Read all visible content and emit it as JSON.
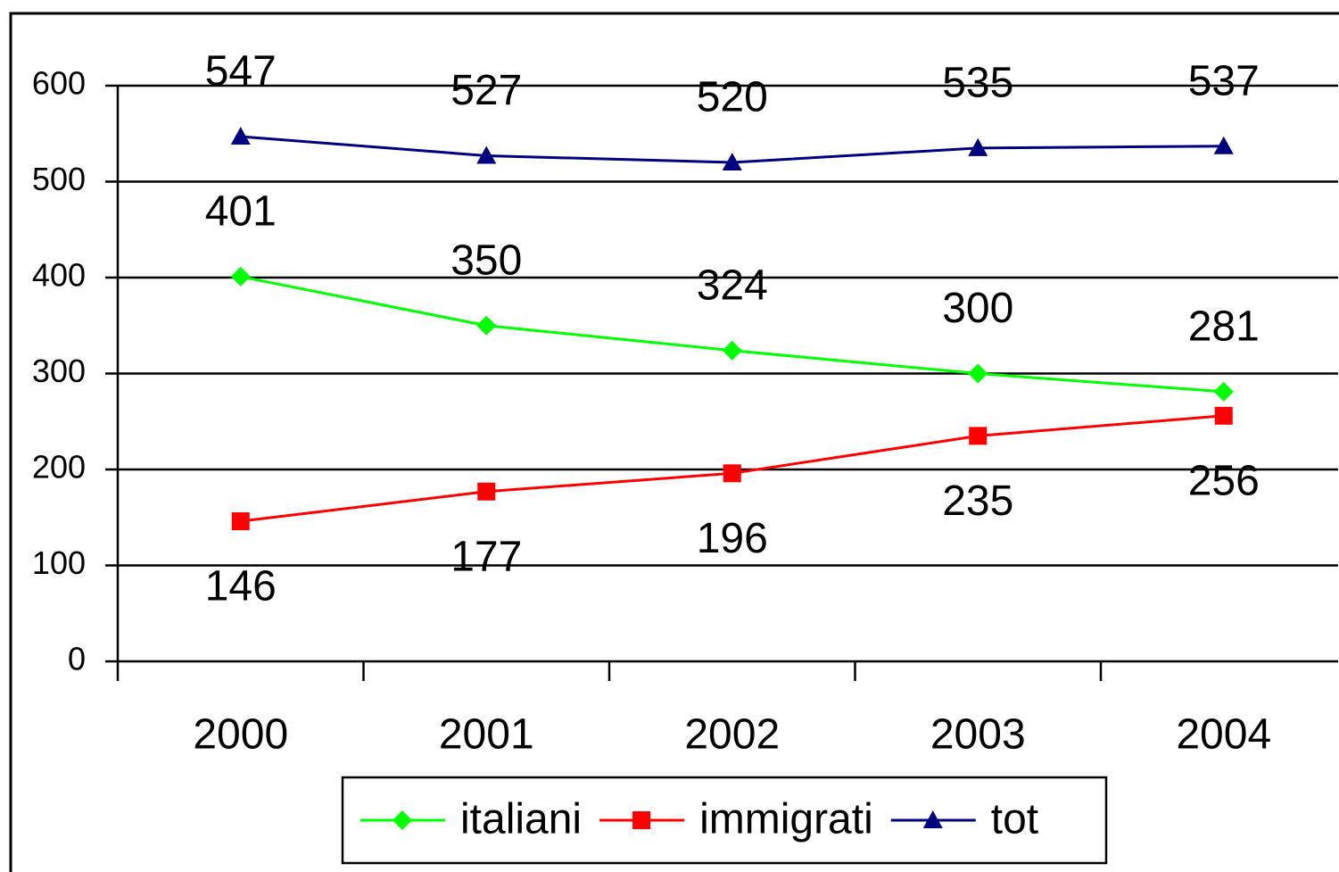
{
  "chart_data": {
    "type": "line",
    "categories": [
      "2000",
      "2001",
      "2002",
      "2003",
      "2004"
    ],
    "series": [
      {
        "name": "italiani",
        "color": "#00ff00",
        "marker": "diamond",
        "label_position": "above",
        "values": [
          401,
          350,
          324,
          300,
          281
        ]
      },
      {
        "name": "immigrati",
        "color": "#ff0000",
        "marker": "square",
        "label_position": "below",
        "values": [
          146,
          177,
          196,
          235,
          256
        ]
      },
      {
        "name": "tot",
        "color": "#000080",
        "marker": "triangle",
        "label_position": "above",
        "values": [
          547,
          527,
          520,
          535,
          537
        ]
      }
    ],
    "ylim": [
      0,
      600
    ],
    "yticks": [
      0,
      100,
      200,
      300,
      400,
      500,
      600
    ],
    "grid": true,
    "legend": "bottom"
  }
}
